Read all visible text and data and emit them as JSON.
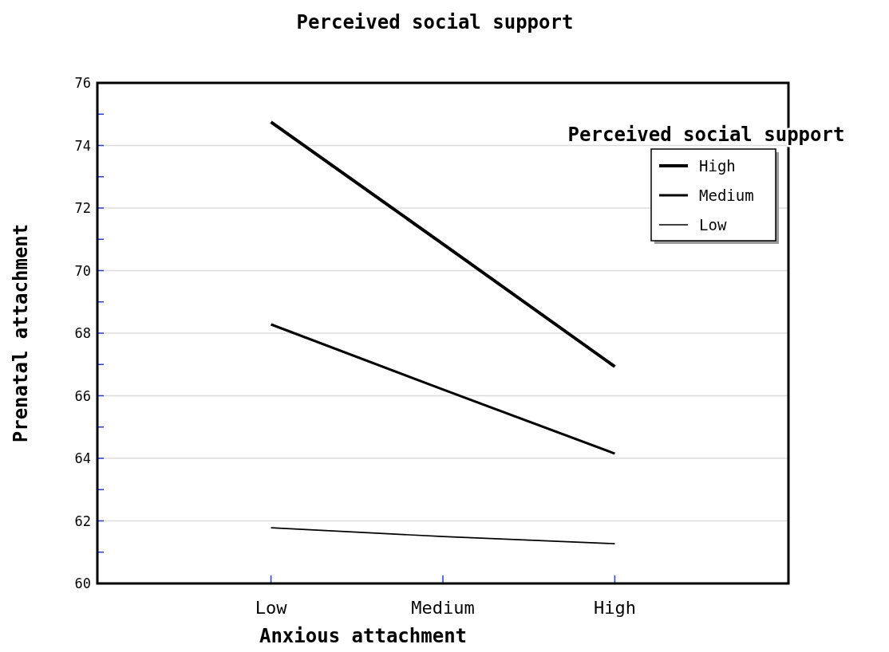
{
  "chart_data": {
    "type": "line",
    "title": "Perceived social support",
    "xlabel": "Anxious attachment",
    "ylabel": "Prenatal attachment",
    "legend_title": "Perceived social support",
    "categories": [
      "Low",
      "Medium",
      "High"
    ],
    "series": [
      {
        "name": "High",
        "color": "#000000",
        "values": [
          74.75,
          70.85,
          66.93
        ]
      },
      {
        "name": "Medium",
        "color": "#000000",
        "values": [
          68.28,
          66.2,
          64.15
        ]
      },
      {
        "name": "Low",
        "color": "#000000",
        "values": [
          61.78,
          61.5,
          61.27
        ]
      }
    ],
    "ylim": [
      60,
      76
    ],
    "yticks": [
      60,
      {
        "value": 61,
        "label": null
      },
      62,
      {
        "value": 63,
        "label": null
      },
      64,
      {
        "value": 65,
        "label": null
      },
      66,
      {
        "value": 67,
        "label": null
      },
      68,
      {
        "value": 69,
        "label": null
      },
      70,
      {
        "value": 71,
        "label": null
      },
      72,
      {
        "value": 73,
        "label": null
      },
      74,
      {
        "value": 75,
        "label": null
      },
      76
    ],
    "grid": "y",
    "legend": "top right",
    "marker": "none",
    "line_style": "solid"
  }
}
